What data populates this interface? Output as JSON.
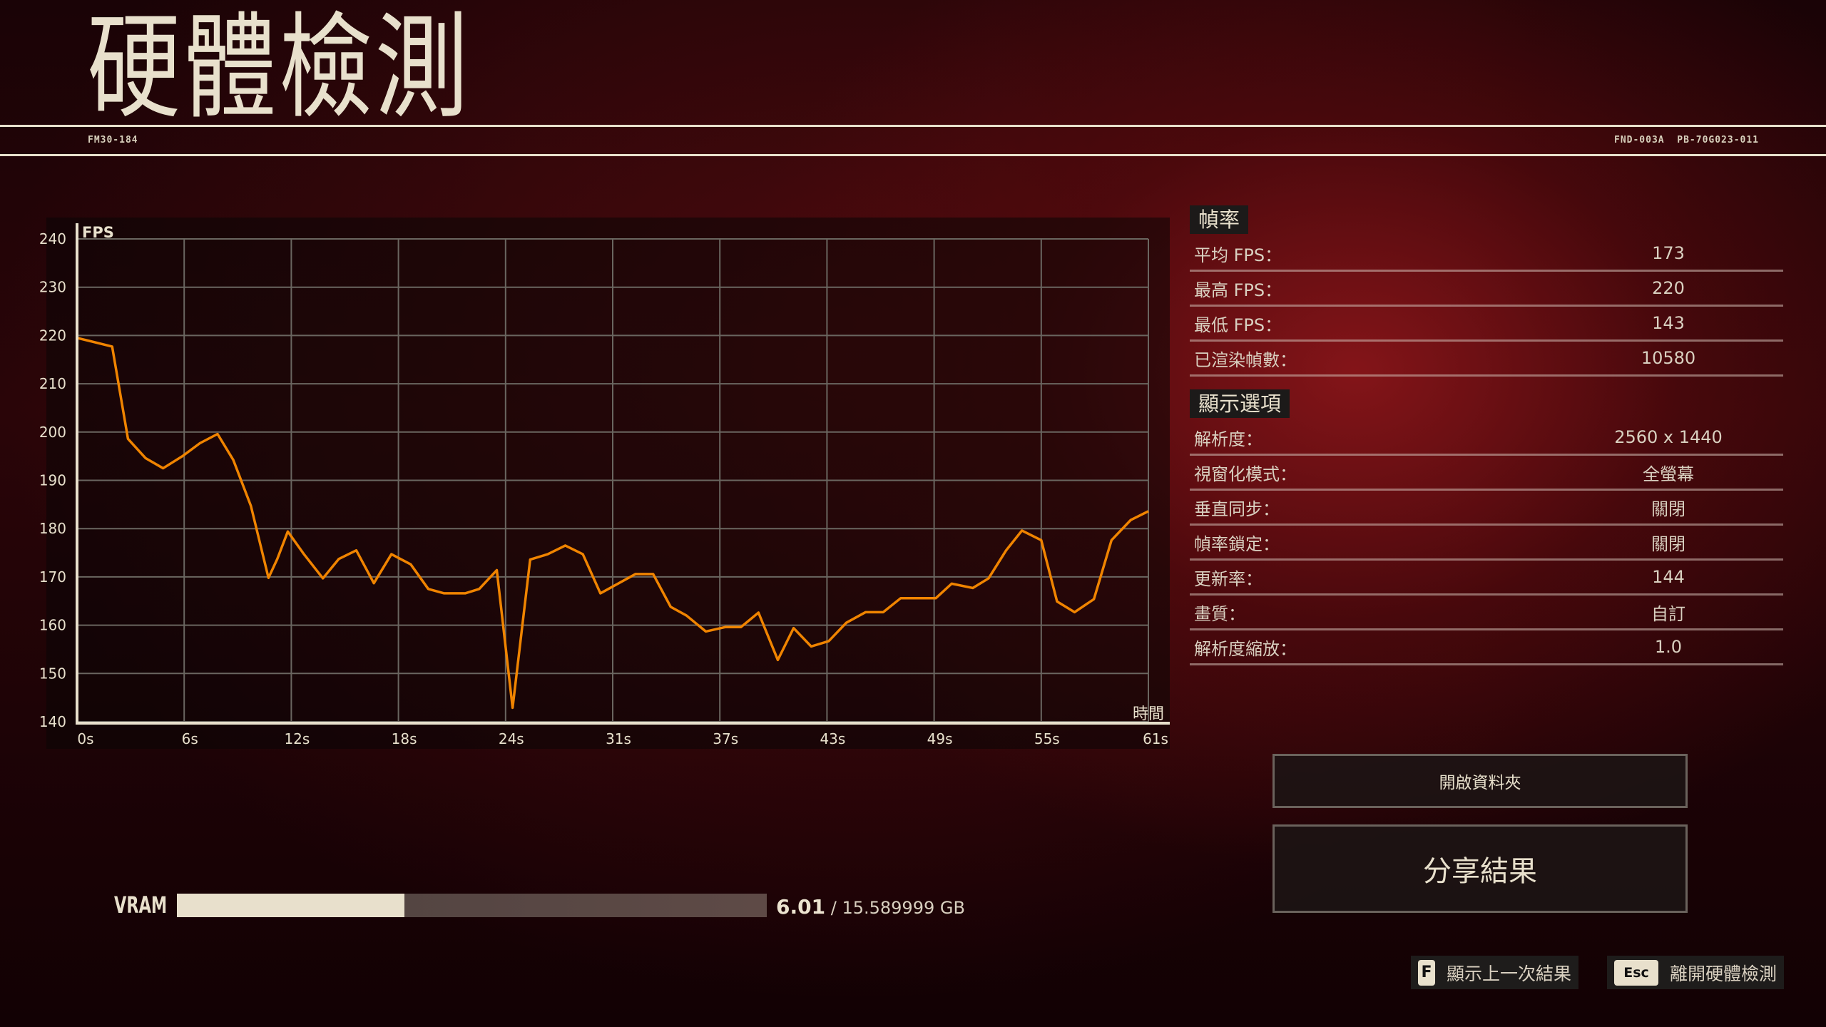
{
  "header": {
    "title": "硬體檢測",
    "left_code": "FM30-184",
    "right_code": "FND-003A  PB-70G023-011"
  },
  "chart_data": {
    "type": "line",
    "ylabel": "FPS",
    "xlabel": "時間",
    "ylim": [
      140,
      240
    ],
    "xlim": [
      0,
      61
    ],
    "yticks": [
      "240",
      "230",
      "220",
      "210",
      "200",
      "190",
      "180",
      "170",
      "160",
      "150",
      "140"
    ],
    "xticks": [
      "0s",
      "6s",
      "12s",
      "18s",
      "24s",
      "31s",
      "37s",
      "43s",
      "49s",
      "55s",
      "61s"
    ],
    "grid": true,
    "color": "#f08400",
    "x": [
      0,
      2,
      2.9,
      3.9,
      4.9,
      6,
      7,
      8,
      8.9,
      9.9,
      10.9,
      11.4,
      12,
      12.9,
      14,
      14.9,
      15.9,
      16.9,
      17.9,
      19,
      20,
      20.9,
      22.1,
      22.9,
      23.9,
      24.8,
      25.8,
      26.8,
      27.8,
      28.8,
      29.8,
      31.8,
      32.8,
      33.8,
      34.7,
      35.8,
      36.9,
      37.8,
      38.8,
      39.9,
      40.8,
      41.8,
      42.8,
      43.8,
      44.9,
      45.9,
      46.9,
      48.9,
      49.8,
      51,
      51.9,
      52.9,
      53.8,
      54.9,
      55.8,
      56.8,
      57.9,
      58.9,
      60,
      61
    ],
    "y": [
      219.5,
      217.7,
      198.6,
      194.6,
      192.5,
      195,
      197.7,
      199.6,
      194.2,
      184.7,
      169.8,
      173.7,
      179.4,
      174.8,
      169.7,
      173.7,
      175.5,
      168.7,
      174.7,
      172.6,
      167.5,
      166.6,
      166.6,
      167.5,
      171.4,
      142.9,
      173.6,
      174.7,
      176.5,
      174.7,
      166.6,
      170.6,
      170.6,
      163.8,
      162,
      158.7,
      159.6,
      159.6,
      162.6,
      152.8,
      159.4,
      155.6,
      156.7,
      160.5,
      162.7,
      162.7,
      165.6,
      165.6,
      168.6,
      167.7,
      169.7,
      175.5,
      179.6,
      177.6,
      164.9,
      162.7,
      165.4,
      177.6,
      181.8,
      183.6
    ]
  },
  "framerate": {
    "heading": "幀率",
    "rows": [
      {
        "label": "平均 FPS：",
        "value": "173"
      },
      {
        "label": "最高 FPS：",
        "value": "220"
      },
      {
        "label": "最低 FPS：",
        "value": "143"
      },
      {
        "label": "已渲染幀數：",
        "value": "10580"
      }
    ]
  },
  "display": {
    "heading": "顯示選項",
    "rows": [
      {
        "label": "解析度：",
        "value": "2560 x 1440"
      },
      {
        "label": "視窗化模式：",
        "value": "全螢幕"
      },
      {
        "label": "垂直同步：",
        "value": "關閉"
      },
      {
        "label": "幀率鎖定：",
        "value": "關閉"
      },
      {
        "label": "更新率：",
        "value": "144"
      },
      {
        "label": "畫質：",
        "value": "自訂"
      },
      {
        "label": "解析度縮放：",
        "value": "1.0"
      }
    ]
  },
  "buttons": {
    "open_folder": "開啟資料夾",
    "share": "分享結果"
  },
  "hints": [
    {
      "key": "F",
      "label": "顯示上一次結果"
    },
    {
      "key": "Esc",
      "label": "離開硬體檢測"
    }
  ],
  "vram": {
    "label": "VRAM",
    "used": "6.01",
    "total": "/ 15.589999 GB",
    "fraction": 0.3855
  }
}
